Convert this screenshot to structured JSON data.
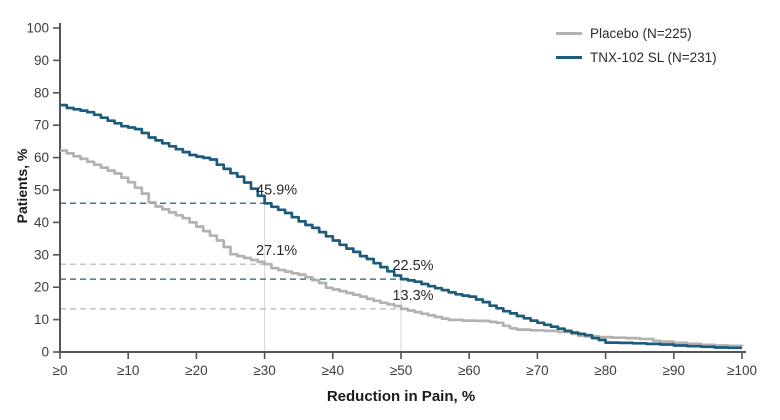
{
  "chart_data": {
    "type": "line",
    "subtype": "step-cdf-responder-analysis",
    "title": "",
    "xlabel": "Reduction in Pain, %",
    "ylabel": "Patients, %",
    "xlim": [
      0,
      100
    ],
    "ylim": [
      0,
      100
    ],
    "grid": false,
    "legend_position": "top-right",
    "x_tick_values": [
      0,
      10,
      20,
      30,
      40,
      50,
      60,
      70,
      80,
      90,
      100
    ],
    "x_tick_labels": [
      "≥0",
      "≥10",
      "≥20",
      "≥30",
      "≥40",
      "≥50",
      "≥60",
      "≥70",
      "≥80",
      "≥90",
      "≥100"
    ],
    "y_tick_values": [
      0,
      10,
      20,
      30,
      40,
      50,
      60,
      70,
      80,
      90,
      100
    ],
    "series": [
      {
        "name": "Placebo (N=225)",
        "color": "#b2b2b2",
        "points": [
          [
            0,
            62.2
          ],
          [
            1,
            61.3
          ],
          [
            2,
            60.4
          ],
          [
            3,
            59.6
          ],
          [
            4,
            58.7
          ],
          [
            5,
            57.8
          ],
          [
            6,
            56.9
          ],
          [
            7,
            56.0
          ],
          [
            8,
            55.1
          ],
          [
            9,
            53.8
          ],
          [
            10,
            52.4
          ],
          [
            11,
            50.7
          ],
          [
            12,
            48.9
          ],
          [
            13,
            46.2
          ],
          [
            14,
            44.9
          ],
          [
            15,
            44.0
          ],
          [
            16,
            43.1
          ],
          [
            17,
            42.2
          ],
          [
            18,
            41.3
          ],
          [
            19,
            40.0
          ],
          [
            20,
            38.7
          ],
          [
            21,
            37.3
          ],
          [
            22,
            35.9
          ],
          [
            23,
            34.4
          ],
          [
            24,
            32.4
          ],
          [
            25,
            30.2
          ],
          [
            26,
            29.6
          ],
          [
            27,
            29.0
          ],
          [
            28,
            28.4
          ],
          [
            29,
            27.8
          ],
          [
            30,
            27.1
          ],
          [
            31,
            25.9
          ],
          [
            32,
            25.3
          ],
          [
            33,
            24.8
          ],
          [
            34,
            24.3
          ],
          [
            35,
            23.9
          ],
          [
            36,
            23.1
          ],
          [
            37,
            22.2
          ],
          [
            38,
            21.3
          ],
          [
            39,
            19.8
          ],
          [
            40,
            19.3
          ],
          [
            41,
            18.8
          ],
          [
            42,
            18.2
          ],
          [
            43,
            17.7
          ],
          [
            44,
            17.1
          ],
          [
            45,
            16.4
          ],
          [
            46,
            15.8
          ],
          [
            47,
            15.2
          ],
          [
            48,
            14.7
          ],
          [
            49,
            14.2
          ],
          [
            50,
            13.3
          ],
          [
            51,
            12.8
          ],
          [
            52,
            12.3
          ],
          [
            53,
            11.8
          ],
          [
            54,
            11.3
          ],
          [
            55,
            10.8
          ],
          [
            56,
            10.3
          ],
          [
            57,
            9.9
          ],
          [
            59,
            9.7
          ],
          [
            61,
            9.6
          ],
          [
            63,
            9.3
          ],
          [
            64,
            9.0
          ],
          [
            65,
            8.1
          ],
          [
            66,
            7.3
          ],
          [
            67,
            6.9
          ],
          [
            69,
            6.7
          ],
          [
            71,
            6.5
          ],
          [
            73,
            6.2
          ],
          [
            75,
            5.6
          ],
          [
            76,
            5.0
          ],
          [
            77,
            4.8
          ],
          [
            79,
            4.6
          ],
          [
            81,
            4.4
          ],
          [
            83,
            4.3
          ],
          [
            85,
            4.0
          ],
          [
            87,
            3.5
          ],
          [
            88,
            3.2
          ],
          [
            90,
            2.8
          ],
          [
            92,
            2.5
          ],
          [
            94,
            2.2
          ],
          [
            96,
            2.0
          ],
          [
            98,
            1.9
          ],
          [
            100,
            1.8
          ]
        ]
      },
      {
        "name": "TNX-102 SL (N=231)",
        "color": "#1d5b7c",
        "points": [
          [
            0,
            76.2
          ],
          [
            1,
            75.3
          ],
          [
            2,
            74.9
          ],
          [
            3,
            74.5
          ],
          [
            4,
            74.0
          ],
          [
            5,
            73.2
          ],
          [
            6,
            72.3
          ],
          [
            7,
            71.4
          ],
          [
            8,
            70.6
          ],
          [
            9,
            69.7
          ],
          [
            10,
            69.3
          ],
          [
            11,
            68.8
          ],
          [
            12,
            67.6
          ],
          [
            13,
            66.2
          ],
          [
            14,
            65.3
          ],
          [
            15,
            64.4
          ],
          [
            16,
            63.5
          ],
          [
            17,
            62.6
          ],
          [
            18,
            61.7
          ],
          [
            19,
            60.8
          ],
          [
            20,
            60.3
          ],
          [
            21,
            59.9
          ],
          [
            22,
            59.4
          ],
          [
            23,
            57.8
          ],
          [
            24,
            56.5
          ],
          [
            25,
            55.2
          ],
          [
            26,
            54.1
          ],
          [
            27,
            52.3
          ],
          [
            28,
            50.4
          ],
          [
            29,
            48.2
          ],
          [
            30,
            45.9
          ],
          [
            31,
            44.8
          ],
          [
            32,
            43.9
          ],
          [
            33,
            42.9
          ],
          [
            34,
            41.6
          ],
          [
            35,
            40.3
          ],
          [
            36,
            39.2
          ],
          [
            37,
            38.3
          ],
          [
            38,
            37.0
          ],
          [
            39,
            35.7
          ],
          [
            40,
            34.4
          ],
          [
            41,
            33.1
          ],
          [
            42,
            31.9
          ],
          [
            43,
            30.9
          ],
          [
            44,
            29.6
          ],
          [
            45,
            28.7
          ],
          [
            46,
            27.4
          ],
          [
            47,
            26.2
          ],
          [
            48,
            24.9
          ],
          [
            49,
            23.6
          ],
          [
            50,
            22.5
          ],
          [
            51,
            22.1
          ],
          [
            52,
            21.7
          ],
          [
            53,
            21.0
          ],
          [
            54,
            20.3
          ],
          [
            55,
            19.7
          ],
          [
            56,
            19.1
          ],
          [
            57,
            18.4
          ],
          [
            58,
            17.8
          ],
          [
            59,
            17.4
          ],
          [
            60,
            17.1
          ],
          [
            61,
            16.2
          ],
          [
            62,
            15.4
          ],
          [
            63,
            14.3
          ],
          [
            64,
            13.5
          ],
          [
            65,
            12.6
          ],
          [
            66,
            11.9
          ],
          [
            67,
            11.1
          ],
          [
            68,
            10.4
          ],
          [
            69,
            9.7
          ],
          [
            70,
            9.0
          ],
          [
            71,
            8.4
          ],
          [
            72,
            7.8
          ],
          [
            73,
            7.2
          ],
          [
            74,
            6.5
          ],
          [
            75,
            6.0
          ],
          [
            76,
            5.6
          ],
          [
            77,
            5.2
          ],
          [
            78,
            4.3
          ],
          [
            79,
            3.7
          ],
          [
            80,
            2.9
          ],
          [
            82,
            2.8
          ],
          [
            84,
            2.7
          ],
          [
            86,
            2.5
          ],
          [
            88,
            2.3
          ],
          [
            90,
            2.0
          ],
          [
            92,
            1.8
          ],
          [
            94,
            1.6
          ],
          [
            96,
            1.4
          ],
          [
            98,
            1.3
          ],
          [
            100,
            1.3
          ]
        ]
      }
    ],
    "annotations": [
      {
        "label": "45.9%",
        "x": 30,
        "y": 45.9,
        "series": "TNX-102 SL (N=231)"
      },
      {
        "label": "27.1%",
        "x": 30,
        "y": 27.1,
        "series": "Placebo (N=225)"
      },
      {
        "label": "22.5%",
        "x": 50,
        "y": 22.5,
        "series": "TNX-102 SL (N=231)"
      },
      {
        "label": "13.3%",
        "x": 50,
        "y": 13.3,
        "series": "Placebo (N=225)"
      }
    ],
    "reference_lines": {
      "horizontal_dashed": [
        {
          "y": 45.9,
          "x_start": 0,
          "x_end": 30,
          "color": "#3d7a99"
        },
        {
          "y": 27.1,
          "x_start": 0,
          "x_end": 30,
          "color": "#c4c4c4"
        },
        {
          "y": 22.5,
          "x_start": 0,
          "x_end": 50,
          "color": "#3d7a99"
        },
        {
          "y": 13.3,
          "x_start": 0,
          "x_end": 50,
          "color": "#c4c4c4"
        }
      ],
      "vertical_solid": [
        {
          "x": 30,
          "y_top": 45.9,
          "y_bottom": 0,
          "color": "#d6d6d6"
        },
        {
          "x": 50,
          "y_top": 22.5,
          "y_bottom": 0,
          "color": "#d6d6d6"
        }
      ]
    }
  },
  "axes": {
    "x_title": "Reduction in Pain, %",
    "y_title": "Patients, %"
  },
  "legend": {
    "items": [
      {
        "label": "Placebo (N=225)",
        "color": "#b2b2b2"
      },
      {
        "label": "TNX-102 SL (N=231)",
        "color": "#1d5b7c"
      }
    ]
  },
  "colors": {
    "background": "#ffffff",
    "axis": "#555555",
    "tick_text": "#3d3d3d",
    "annotation_text": "#2a2a2a",
    "placebo": "#b2b2b2",
    "tnx": "#1d5b7c"
  }
}
